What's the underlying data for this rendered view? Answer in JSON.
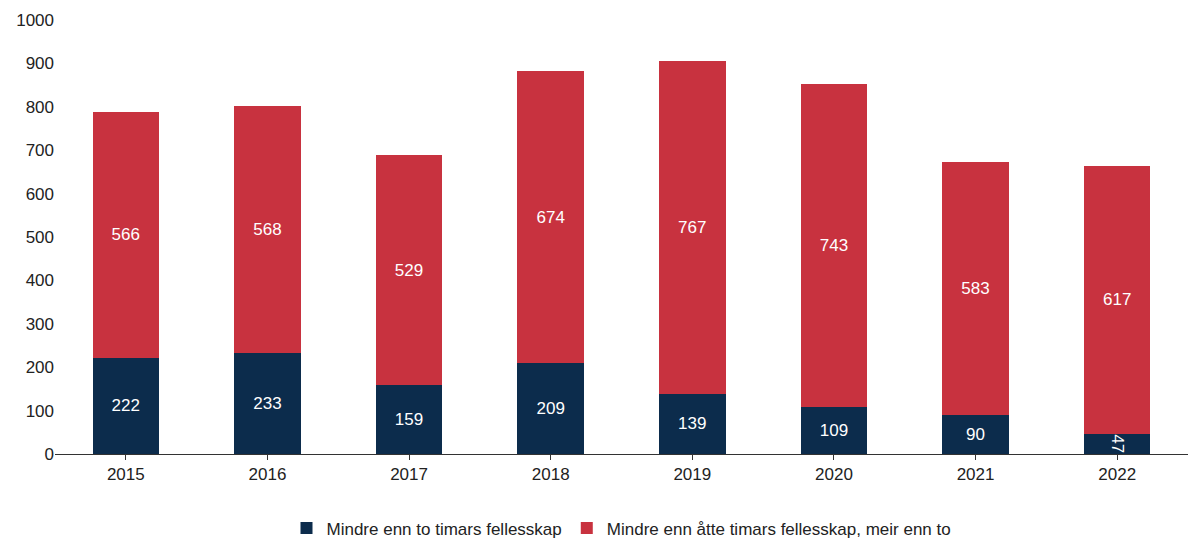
{
  "chart_data": {
    "type": "bar",
    "stacked": true,
    "data_labels": true,
    "grid": false,
    "legend": "bottom",
    "categories": [
      "2015",
      "2016",
      "2017",
      "2018",
      "2019",
      "2020",
      "2021",
      "2022"
    ],
    "series": [
      {
        "name": "Mindre enn to timars fellesskap",
        "color": "#0c2c4c",
        "values": [
          222,
          233,
          159,
          209,
          139,
          109,
          90,
          47
        ]
      },
      {
        "name": "Mindre enn åtte timars fellesskap, meir enn to",
        "color": "#c8323f",
        "values": [
          566,
          568,
          529,
          674,
          767,
          743,
          583,
          617
        ]
      }
    ],
    "ylim": [
      0,
      1000
    ],
    "yticks": [
      0,
      100,
      200,
      300,
      400,
      500,
      600,
      700,
      800,
      900,
      1000
    ]
  }
}
